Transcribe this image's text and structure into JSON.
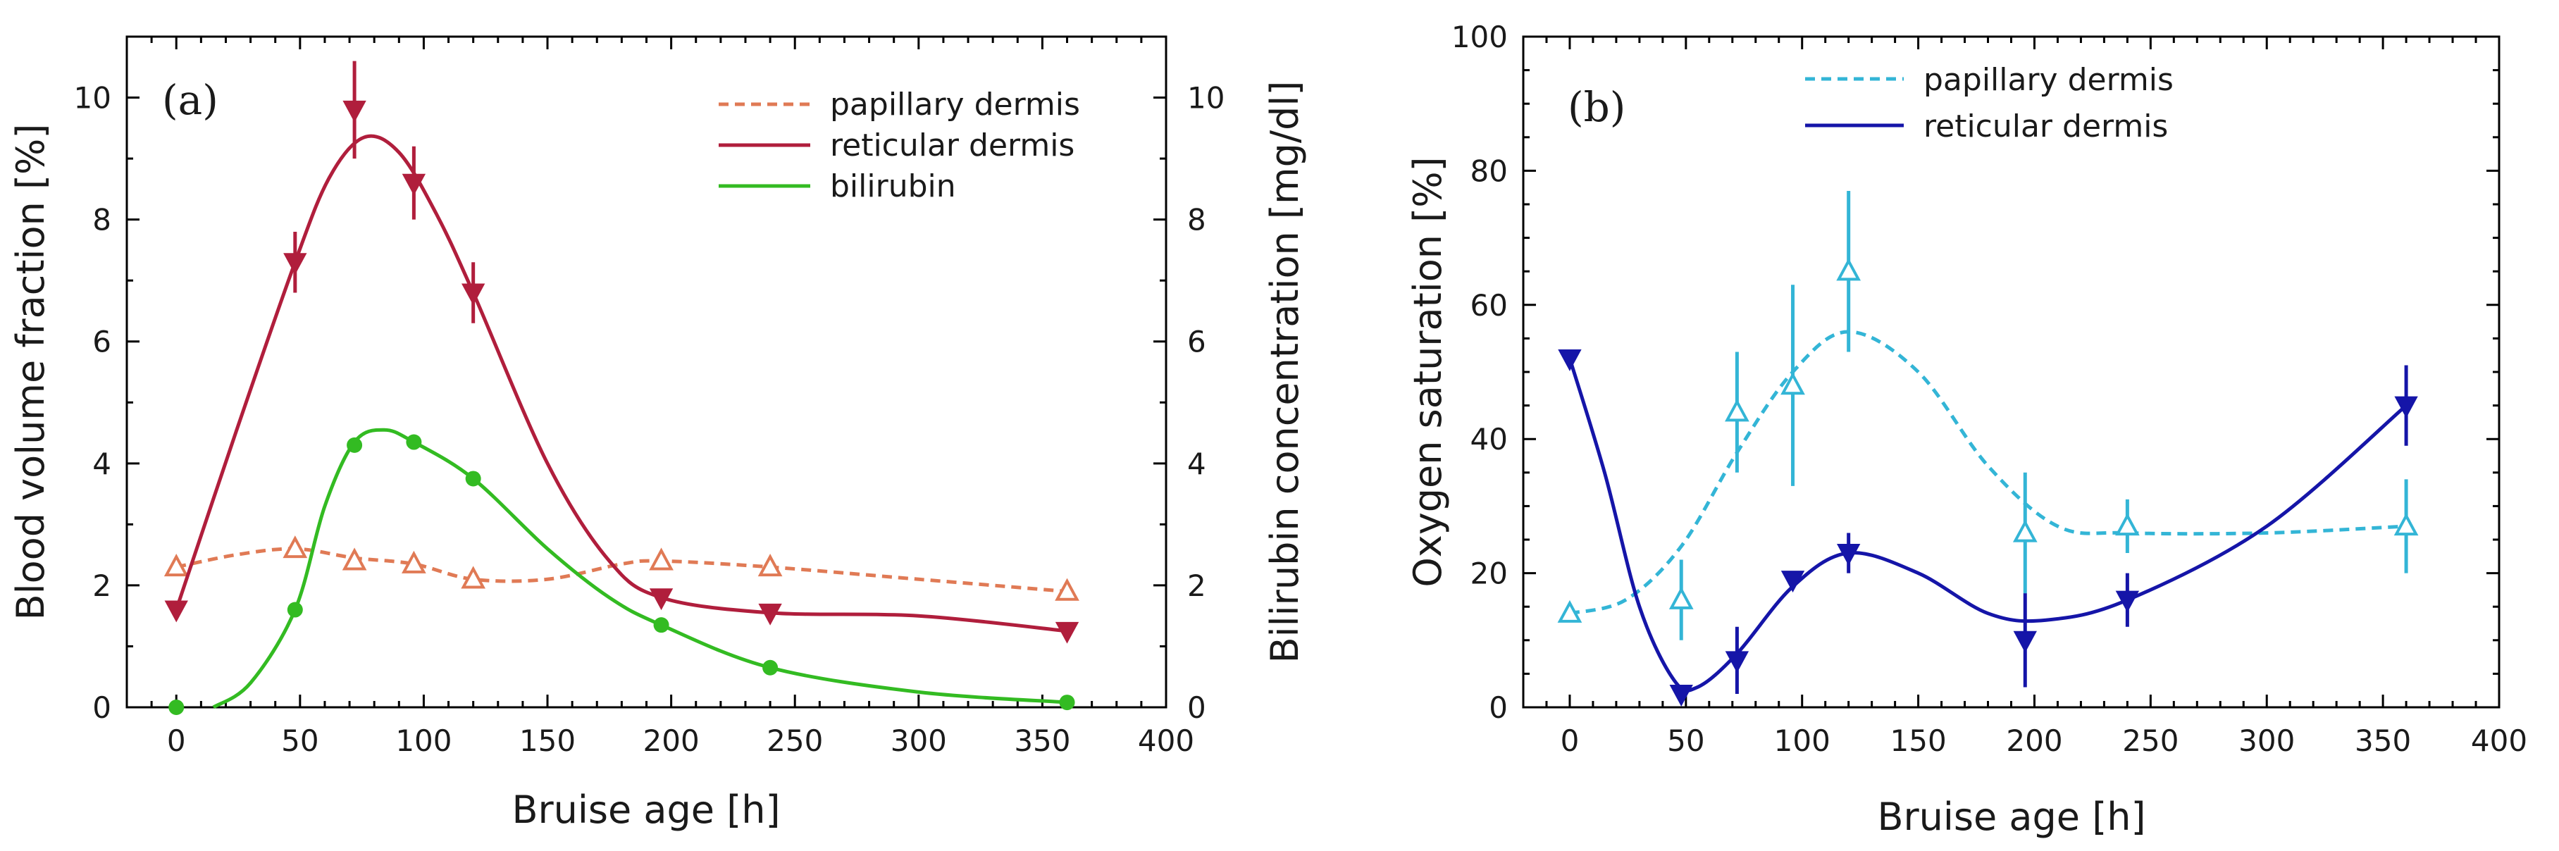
{
  "colors": {
    "papillary_a": "#e07a55",
    "reticular_a": "#b01e3c",
    "bilirubin": "#33bb22",
    "papillary_b": "#33b5d6",
    "reticular_b": "#1515a8"
  },
  "chart_data": [
    {
      "type": "line",
      "panel_label": "(a)",
      "xlabel": "Bruise age [h]",
      "ylabel": "Blood volume fraction [%]",
      "y2label": "Bilirubin concentration [mg/dl]",
      "xlim": [
        -20,
        400
      ],
      "ylim": [
        0,
        11
      ],
      "y2lim": [
        0,
        11
      ],
      "xticks": [
        "0",
        "50",
        "100",
        "150",
        "200",
        "250",
        "300",
        "350",
        "400"
      ],
      "yticks": [
        "0",
        "2",
        "4",
        "6",
        "8",
        "10"
      ],
      "y2ticks": [
        "0",
        "2",
        "4",
        "6",
        "8",
        "10"
      ],
      "series": [
        {
          "name": "papillary dermis",
          "marker": "triangle-up-open",
          "style": "dashed",
          "axis": "left",
          "x": [
            0,
            48,
            72,
            96,
            120,
            196,
            240,
            360
          ],
          "y": [
            2.3,
            2.6,
            2.4,
            2.35,
            2.1,
            2.4,
            2.3,
            1.9
          ],
          "err": [
            0,
            0,
            0,
            0,
            0,
            0,
            0,
            0
          ],
          "curve": [
            [
              0,
              2.3
            ],
            [
              24,
              2.5
            ],
            [
              48,
              2.6
            ],
            [
              72,
              2.45
            ],
            [
              96,
              2.35
            ],
            [
              120,
              2.1
            ],
            [
              150,
              2.1
            ],
            [
              180,
              2.35
            ],
            [
              196,
              2.4
            ],
            [
              240,
              2.3
            ],
            [
              300,
              2.1
            ],
            [
              360,
              1.9
            ]
          ]
        },
        {
          "name": "reticular dermis",
          "marker": "triangle-down",
          "style": "solid",
          "axis": "left",
          "x": [
            0,
            48,
            72,
            96,
            120,
            196,
            240,
            360
          ],
          "y": [
            1.6,
            7.3,
            9.8,
            8.6,
            6.8,
            1.8,
            1.55,
            1.25
          ],
          "err": [
            0,
            0.5,
            0.8,
            0.6,
            0.5,
            0,
            0,
            0
          ],
          "curve": [
            [
              0,
              1.6
            ],
            [
              24,
              4.5
            ],
            [
              48,
              7.3
            ],
            [
              62,
              8.7
            ],
            [
              76,
              9.35
            ],
            [
              90,
              9.1
            ],
            [
              105,
              8.1
            ],
            [
              120,
              6.8
            ],
            [
              150,
              4.0
            ],
            [
              175,
              2.4
            ],
            [
              196,
              1.8
            ],
            [
              240,
              1.55
            ],
            [
              300,
              1.5
            ],
            [
              360,
              1.25
            ]
          ]
        },
        {
          "name": "bilirubin",
          "marker": "circle",
          "style": "solid",
          "axis": "right",
          "x": [
            0,
            48,
            72,
            96,
            120,
            196,
            240,
            360
          ],
          "y": [
            0.0,
            1.6,
            4.3,
            4.35,
            3.75,
            1.35,
            0.65,
            0.08
          ],
          "err": [
            0,
            0,
            0,
            0,
            0,
            0,
            0,
            0
          ],
          "curve": [
            [
              15,
              0
            ],
            [
              30,
              0.4
            ],
            [
              48,
              1.6
            ],
            [
              60,
              3.3
            ],
            [
              72,
              4.35
            ],
            [
              84,
              4.55
            ],
            [
              96,
              4.35
            ],
            [
              120,
              3.75
            ],
            [
              150,
              2.6
            ],
            [
              175,
              1.8
            ],
            [
              196,
              1.35
            ],
            [
              240,
              0.65
            ],
            [
              300,
              0.25
            ],
            [
              360,
              0.08
            ]
          ]
        }
      ]
    },
    {
      "type": "line",
      "panel_label": "(b)",
      "xlabel": "Bruise age [h]",
      "ylabel": "Oxygen saturation [%]",
      "xlim": [
        -20,
        400
      ],
      "ylim": [
        0,
        100
      ],
      "xticks": [
        "0",
        "50",
        "100",
        "150",
        "200",
        "250",
        "300",
        "350",
        "400"
      ],
      "yticks": [
        "0",
        "20",
        "40",
        "60",
        "80",
        "100"
      ],
      "series": [
        {
          "name": "papillary dermis",
          "marker": "triangle-up-open",
          "style": "dashed",
          "x": [
            0,
            48,
            72,
            96,
            120,
            196,
            240,
            360
          ],
          "y": [
            14,
            16,
            44,
            48,
            65,
            26,
            27,
            27
          ],
          "err": [
            0,
            6,
            9,
            15,
            12,
            9,
            4,
            7
          ],
          "curve": [
            [
              0,
              14
            ],
            [
              24,
              16
            ],
            [
              48,
              24
            ],
            [
              72,
              38
            ],
            [
              96,
              50
            ],
            [
              120,
              56
            ],
            [
              150,
              50
            ],
            [
              180,
              36
            ],
            [
              210,
              27
            ],
            [
              240,
              26
            ],
            [
              300,
              26
            ],
            [
              360,
              27
            ]
          ]
        },
        {
          "name": "reticular dermis",
          "marker": "triangle-down",
          "style": "solid",
          "x": [
            0,
            48,
            72,
            96,
            120,
            196,
            240,
            360
          ],
          "y": [
            52,
            2,
            7,
            19,
            23,
            10,
            16,
            45
          ],
          "err": [
            0,
            0,
            5,
            0,
            3,
            7,
            4,
            6
          ],
          "curve": [
            [
              0,
              52
            ],
            [
              15,
              35
            ],
            [
              30,
              15
            ],
            [
              45,
              4
            ],
            [
              55,
              3
            ],
            [
              72,
              8
            ],
            [
              96,
              18
            ],
            [
              120,
              23
            ],
            [
              150,
              20
            ],
            [
              180,
              14
            ],
            [
              205,
              13
            ],
            [
              240,
              16
            ],
            [
              300,
              27
            ],
            [
              360,
              45
            ]
          ]
        }
      ]
    }
  ]
}
